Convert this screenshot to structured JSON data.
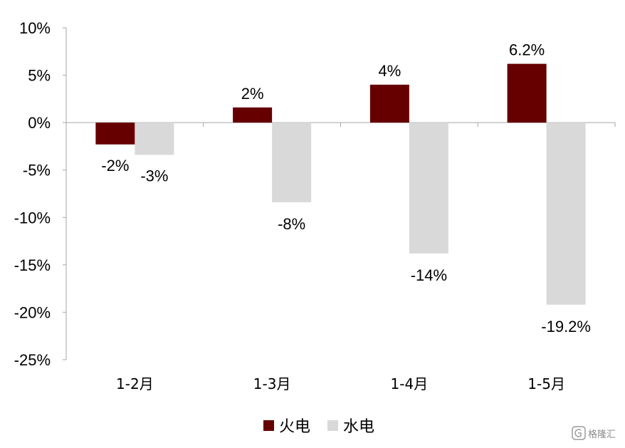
{
  "chart_data": {
    "type": "bar",
    "categories": [
      "1-2月",
      "1-3月",
      "1-4月",
      "1-5月"
    ],
    "series": [
      {
        "name": "火电",
        "color": "#660000",
        "values": [
          -2.3,
          1.6,
          4.0,
          6.2
        ],
        "labels": [
          "-2%",
          "2%",
          "4%",
          "6.2%"
        ]
      },
      {
        "name": "水电",
        "color": "#d9d9d9",
        "values": [
          -3.4,
          -8.4,
          -13.8,
          -19.2
        ],
        "labels": [
          "-3%",
          "-8%",
          "-14%",
          "-19.2%"
        ]
      }
    ],
    "yticks": [
      10,
      5,
      0,
      -5,
      -10,
      -15,
      -20,
      -25
    ],
    "ytick_labels": [
      "10%",
      "5%",
      "0%",
      "-5%",
      "-10%",
      "-15%",
      "-20%",
      "-25%"
    ],
    "ylim": [
      -25,
      10
    ],
    "title": "",
    "xlabel": "",
    "ylabel": "",
    "legend_position": "bottom-center",
    "grid": false
  },
  "watermark": {
    "text": "格隆汇"
  }
}
